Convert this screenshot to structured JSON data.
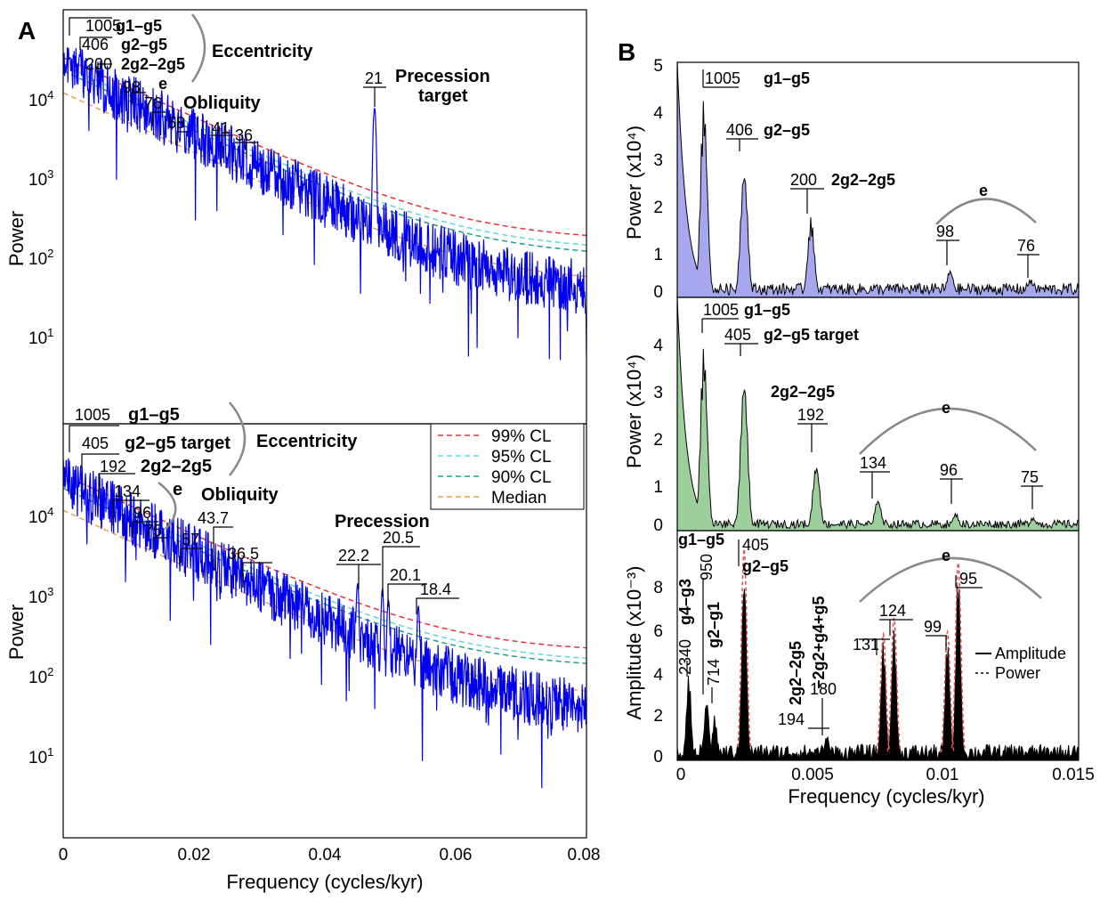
{
  "chart_data": [
    {
      "id": "A-top",
      "type": "line",
      "panel_letter": "A",
      "log_y": true,
      "xlim": [
        0,
        0.08
      ],
      "ylabel": "Power",
      "ytick_labels": [
        "10^1",
        "10^2",
        "10^3",
        "10^4"
      ],
      "series": [
        {
          "name": "99% CL",
          "color": "#e8323a",
          "start": 25000,
          "end": 120
        },
        {
          "name": "95% CL",
          "color": "#5fd7e0",
          "start": 20000,
          "end": 90
        },
        {
          "name": "90% CL",
          "color": "#1f9e8a",
          "start": 17000,
          "end": 75
        },
        {
          "name": "Median",
          "color": "#f0a050",
          "start": 9000,
          "end": 35
        },
        {
          "spectrum": "power",
          "color": "#0000ee"
        }
      ],
      "peaks": [
        {
          "x": 0.001,
          "y": 25000,
          "label": "1005"
        },
        {
          "x": 0.0025,
          "y": 28000,
          "label": "406"
        },
        {
          "x": 0.005,
          "y": 20000,
          "label": "200"
        },
        {
          "x": 0.0102,
          "y": 5500,
          "label": "98"
        },
        {
          "x": 0.0132,
          "y": 4000,
          "label": "76"
        },
        {
          "x": 0.0172,
          "y": 2000,
          "label": "58"
        },
        {
          "x": 0.0244,
          "y": 1900,
          "label": "41"
        },
        {
          "x": 0.0278,
          "y": 1800,
          "label": "36"
        },
        {
          "x": 0.0476,
          "y": 6000,
          "label": "21"
        }
      ],
      "annotations": [
        "g1–g5",
        "g2–g5",
        "2g2–2g5",
        "Eccentricity",
        "e",
        "Obliquity",
        "Precession",
        "target"
      ]
    },
    {
      "id": "A-bottom",
      "type": "line",
      "log_y": true,
      "xlim": [
        0,
        0.08
      ],
      "xlabel": "Frequency (cycles/kyr)",
      "ylabel": "Power",
      "xtick_labels": [
        "0",
        "0.02",
        "0.04",
        "0.06",
        "0.08"
      ],
      "ytick_labels": [
        "10^1",
        "10^2",
        "10^3",
        "10^4"
      ],
      "series": [
        {
          "name": "99% CL",
          "color": "#e8323a",
          "start": 25000,
          "end": 150
        },
        {
          "name": "95% CL",
          "color": "#5fd7e0",
          "start": 20000,
          "end": 110
        },
        {
          "name": "90% CL",
          "color": "#1f9e8a",
          "start": 17000,
          "end": 95
        },
        {
          "name": "Median",
          "color": "#f0a050",
          "start": 9000,
          "end": 42
        },
        {
          "spectrum": "power",
          "color": "#0000ee"
        }
      ],
      "peaks": [
        {
          "x": 0.001,
          "y": 18000,
          "label": "1005"
        },
        {
          "x": 0.0025,
          "y": 20000,
          "label": "405"
        },
        {
          "x": 0.0052,
          "y": 9000,
          "label": "192"
        },
        {
          "x": 0.0075,
          "y": 5500,
          "label": "134"
        },
        {
          "x": 0.0105,
          "y": 4000,
          "label": "96"
        },
        {
          "x": 0.0133,
          "y": 3000,
          "label": "75"
        },
        {
          "x": 0.0175,
          "y": 1800,
          "label": "57"
        },
        {
          "x": 0.0229,
          "y": 1300,
          "label": "43.7"
        },
        {
          "x": 0.0274,
          "y": 900,
          "label": "36.5"
        },
        {
          "x": 0.045,
          "y": 1100,
          "label": "22.2"
        },
        {
          "x": 0.0488,
          "y": 900,
          "label": "20.5"
        },
        {
          "x": 0.0497,
          "y": 700,
          "label": "20.1"
        },
        {
          "x": 0.0543,
          "y": 550,
          "label": "18.4"
        }
      ],
      "annotations": [
        "g1–g5",
        "g2–g5 target",
        "2g2–2g5",
        "Eccentricity",
        "e",
        "Obliquity",
        "Precession"
      ]
    },
    {
      "id": "B-top",
      "type": "area",
      "panel_letter": "B",
      "xlim": [
        0,
        0.015
      ],
      "ylim": [
        0,
        5
      ],
      "ylabel": "Power (x10⁴)",
      "yticks": [
        0,
        1,
        2,
        3,
        4,
        5
      ],
      "color": "#a7a7f0",
      "peaks": [
        {
          "x": 0.001,
          "y": 4.5,
          "label": "1005"
        },
        {
          "x": 0.0025,
          "y": 3.1,
          "label": "406"
        },
        {
          "x": 0.005,
          "y": 1.75,
          "label": "200"
        },
        {
          "x": 0.0102,
          "y": 0.65,
          "label": "98"
        },
        {
          "x": 0.0132,
          "y": 0.4,
          "label": "76"
        }
      ],
      "annotations": [
        "g1–g5",
        "g2–g5",
        "2g2–2g5",
        "e"
      ]
    },
    {
      "id": "B-mid",
      "type": "area",
      "xlim": [
        0,
        0.015
      ],
      "ylim": [
        0,
        5
      ],
      "ylabel": "Power (x10⁴)",
      "yticks": [
        0,
        1,
        2,
        3,
        4
      ],
      "color": "#9dcf9d",
      "peaks": [
        {
          "x": 0.001,
          "y": 4.2,
          "label": "1005"
        },
        {
          "x": 0.0025,
          "y": 3.7,
          "label": "405"
        },
        {
          "x": 0.0052,
          "y": 1.6,
          "label": "192"
        },
        {
          "x": 0.0075,
          "y": 0.75,
          "label": "134"
        },
        {
          "x": 0.0104,
          "y": 0.4,
          "label": "96"
        },
        {
          "x": 0.0133,
          "y": 0.3,
          "label": "75"
        }
      ],
      "annotations": [
        "g1–g5",
        "g2–g5 target",
        "2g2–2g5",
        "e"
      ]
    },
    {
      "id": "B-bottom",
      "type": "area",
      "xlim": [
        0,
        0.015
      ],
      "ylim": [
        0,
        10
      ],
      "xlabel": "Frequency (cycles/kyr)",
      "ylabel": "Amplitude (x10⁻³)",
      "yticks": [
        0,
        2,
        4,
        6,
        8
      ],
      "xtick_labels": [
        "0",
        "0.005",
        "0.01",
        "0.015"
      ],
      "color": "#000000",
      "peaks": [
        {
          "x": 0.00043,
          "y": 3.9,
          "label": "2340"
        },
        {
          "x": 0.0011,
          "y": 3.0,
          "label": "950"
        },
        {
          "x": 0.0014,
          "y": 2.0,
          "label": "714"
        },
        {
          "x": 0.0025,
          "y": 9.2,
          "label": "405"
        },
        {
          "x": 0.0052,
          "y": 0.6,
          "label": "194"
        },
        {
          "x": 0.0056,
          "y": 1.2,
          "label": "180"
        },
        {
          "x": 0.0077,
          "y": 5.5,
          "label": "131"
        },
        {
          "x": 0.0081,
          "y": 6.2,
          "label": "124"
        },
        {
          "x": 0.0101,
          "y": 5.6,
          "label": "99"
        },
        {
          "x": 0.0105,
          "y": 8.6,
          "label": "95"
        }
      ],
      "legend": [
        "Amplitude",
        "Power"
      ],
      "annotations": [
        "g1–g5",
        "g4–g3",
        "g2–g1",
        "g2–g5",
        "2g2–2g5",
        "−2g2+g4+g5",
        "e"
      ]
    }
  ]
}
